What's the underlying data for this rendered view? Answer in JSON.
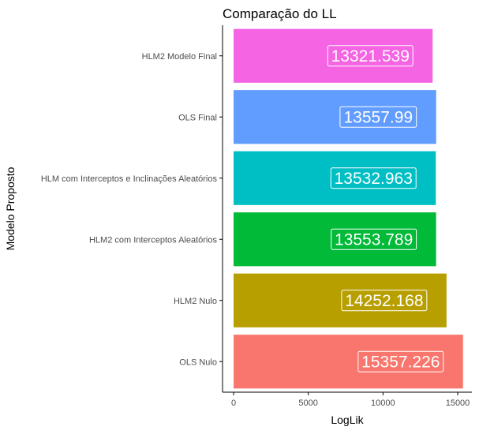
{
  "chart_data": {
    "type": "bar",
    "orientation": "horizontal",
    "title": "Comparação do LL",
    "xlabel": "LogLik",
    "ylabel": "Modelo Proposto",
    "categories": [
      "OLS Nulo",
      "HLM2 Nulo",
      "HLM2 com Interceptos Aleatórios",
      "HLM com Interceptos e Inclinações Aleatórios",
      "OLS Final",
      "HLM2 Modelo Final"
    ],
    "values": [
      15357.226,
      14252.168,
      13553.789,
      13532.963,
      13557.99,
      13321.539
    ],
    "data_labels": [
      "15357.226",
      "14252.168",
      "13553.789",
      "13532.963",
      "13557.99",
      "13321.539"
    ],
    "colors": [
      "#F8766D",
      "#B79F00",
      "#00BA38",
      "#00BFC4",
      "#619CFF",
      "#F564E3"
    ],
    "xlim": [
      0,
      15800
    ],
    "xticks": [
      0,
      5000,
      10000,
      15000
    ],
    "xtick_labels": [
      "0",
      "5000",
      "10000",
      "15000"
    ],
    "grid": false,
    "legend": "none"
  }
}
